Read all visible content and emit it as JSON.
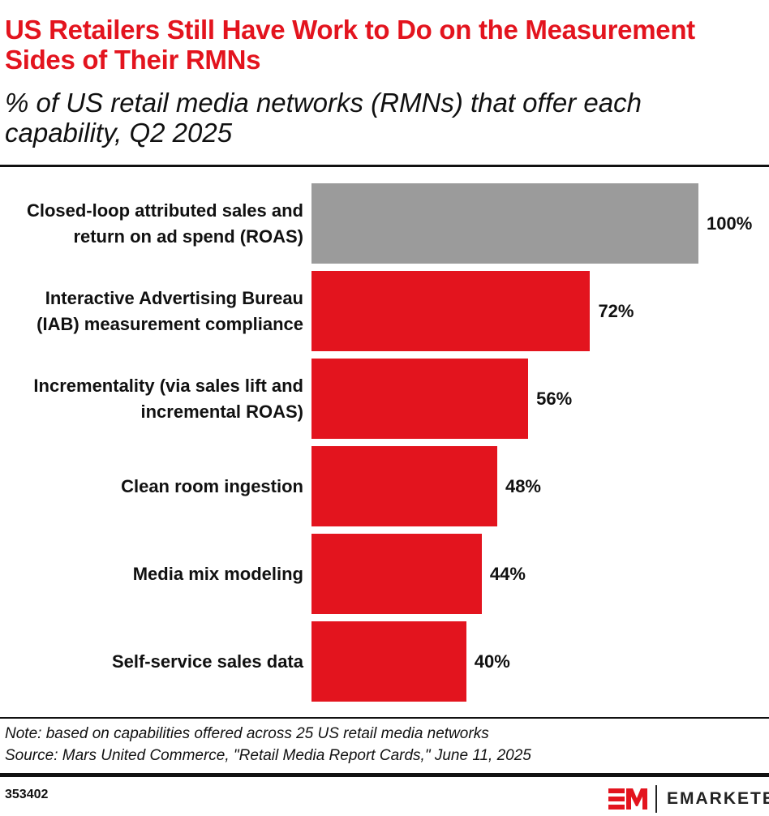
{
  "title": "US Retailers Still Have Work to Do on the Measurement Sides of Their RMNs",
  "subtitle": "% of US retail media networks (RMNs) that offer each capability, Q2 2025",
  "chart_data": {
    "type": "bar",
    "orientation": "horizontal",
    "categories": [
      "Closed-loop attributed sales and return on ad spend (ROAS)",
      "Interactive Advertising Bureau (IAB) measurement compliance",
      "Incrementality (via sales lift and incremental ROAS)",
      "Clean room ingestion",
      "Media mix modeling",
      "Self-service sales data"
    ],
    "values": [
      100,
      72,
      56,
      48,
      44,
      40
    ],
    "value_labels": [
      "100%",
      "72%",
      "56%",
      "48%",
      "44%",
      "40%"
    ],
    "colors": [
      "#9b9b9b",
      "#e3141e",
      "#e3141e",
      "#e3141e",
      "#e3141e",
      "#e3141e"
    ],
    "xlim": [
      0,
      100
    ],
    "grid": false,
    "legend": "none"
  },
  "footer": {
    "note": "Note: based on capabilities offered across 25 US retail media networks",
    "source": "Source: Mars United Commerce, \"Retail Media Report Cards,\" June 11, 2025",
    "chart_id": "353402",
    "brand": "EMARKETER"
  }
}
